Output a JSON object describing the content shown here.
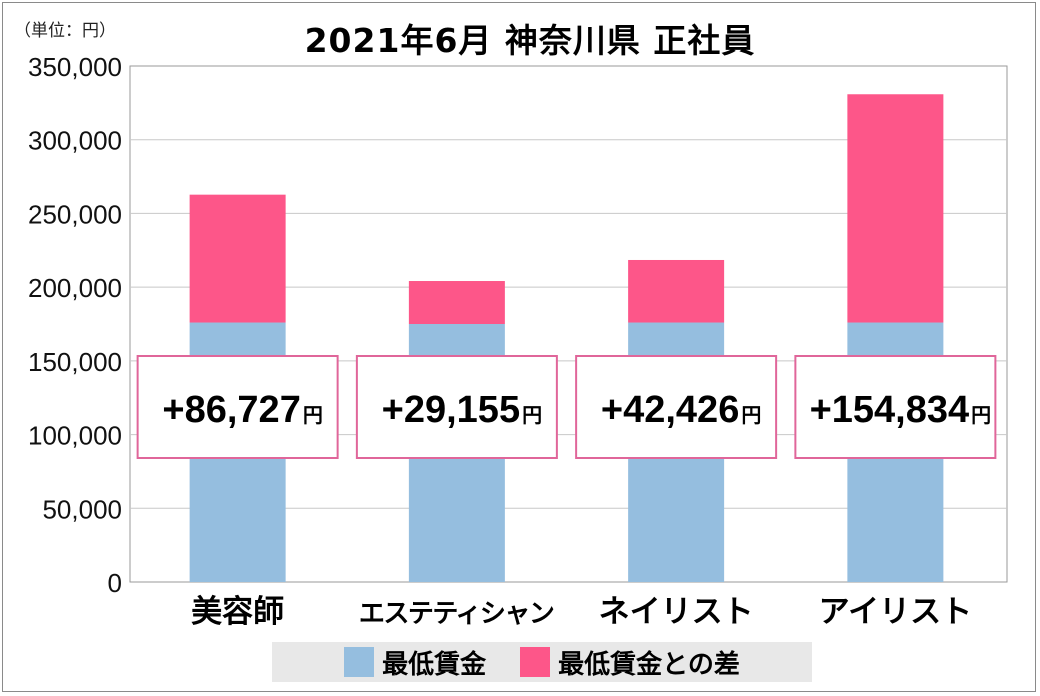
{
  "header": {
    "unit_label": "（単位：円）",
    "title": "2021年6月 神奈川県 正社員"
  },
  "colors": {
    "min_wage": "#95bedf",
    "difference": "#fd5689",
    "grid": "#c8c8c8",
    "callout_border": "#e0669a"
  },
  "chart_data": {
    "type": "bar",
    "stacked": true,
    "categories": [
      "美容師",
      "エステティシャン",
      "ネイリスト",
      "アイリスト"
    ],
    "series": [
      {
        "name": "最低賃金",
        "values": [
          176000,
          175000,
          176000,
          176000
        ]
      },
      {
        "name": "最低賃金との差",
        "values": [
          86727,
          29155,
          42426,
          154834
        ]
      }
    ],
    "callouts": [
      "+86,727",
      "+29,155",
      "+42,426",
      "+154,834"
    ],
    "callout_unit": "円",
    "title": "2021年6月 神奈川県 正社員",
    "ylim": [
      0,
      350000
    ],
    "yticks": [
      0,
      50000,
      100000,
      150000,
      200000,
      250000,
      300000,
      350000
    ],
    "ytick_labels": [
      "0",
      "50,000",
      "100,000",
      "150,000",
      "200,000",
      "250,000",
      "300,000",
      "350,000"
    ],
    "grid": true,
    "legend_position": "bottom"
  }
}
